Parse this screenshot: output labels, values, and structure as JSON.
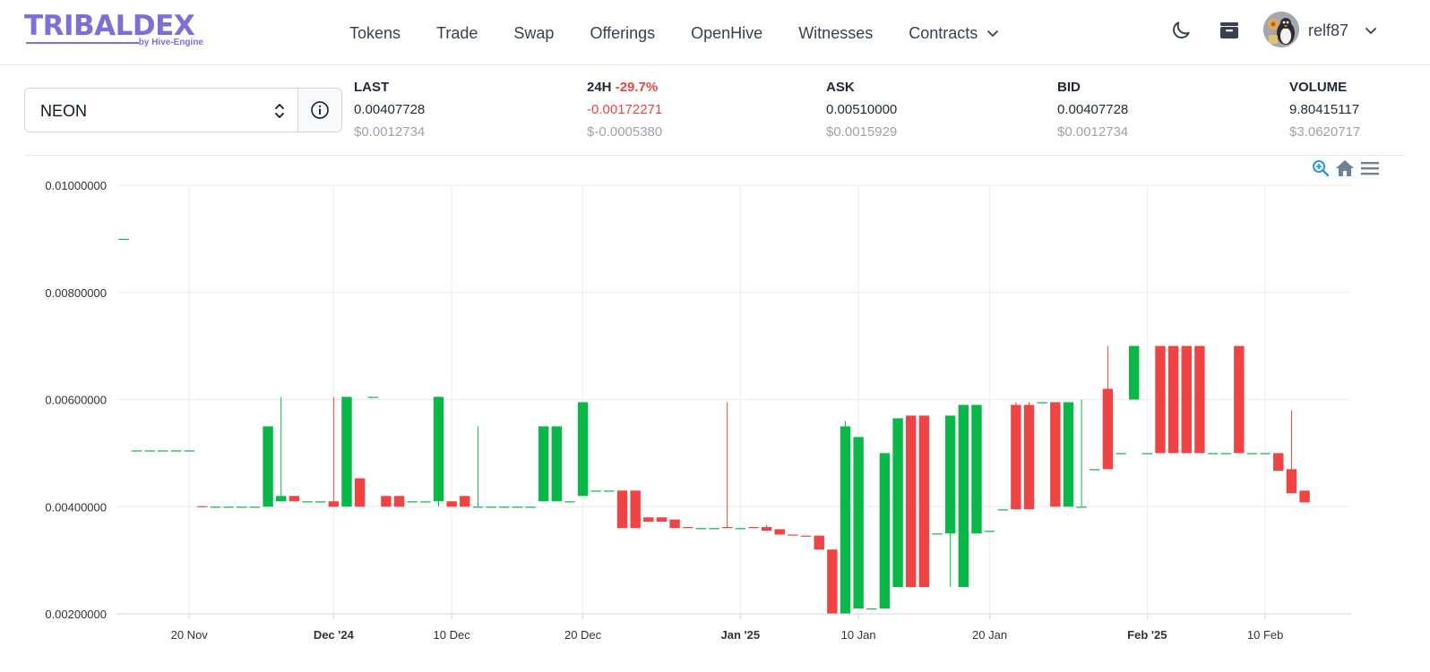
{
  "header": {
    "logo_text": "TRIBALDEX",
    "logo_sub": "by Hive-Engine",
    "nav": [
      {
        "label": "Tokens"
      },
      {
        "label": "Trade"
      },
      {
        "label": "Swap"
      },
      {
        "label": "Offerings"
      },
      {
        "label": "OpenHive"
      },
      {
        "label": "Witnesses"
      },
      {
        "label": "Contracts"
      }
    ],
    "username": "relf87",
    "icons": [
      "moon-icon",
      "wallet-icon",
      "chevron-down-icon"
    ]
  },
  "token_select": {
    "value": "NEON"
  },
  "stats": {
    "last": {
      "label": "LAST",
      "value": "0.00407728",
      "usd": "$0.0012734"
    },
    "change": {
      "label": "24H",
      "pct": "-29.7%",
      "value": "-0.00172271",
      "usd": "$-0.0005380"
    },
    "ask": {
      "label": "ASK",
      "value": "0.00510000",
      "usd": "$0.0015929"
    },
    "bid": {
      "label": "BID",
      "value": "0.00407728",
      "usd": "$0.0012734"
    },
    "volume": {
      "label": "VOLUME",
      "value": "9.80415117",
      "usd": "$3.0620717"
    }
  },
  "colors": {
    "up": "#0ab84a",
    "down": "#ef4444",
    "grid": "#eceef1"
  },
  "chart_data": {
    "type": "candlestick",
    "title": "",
    "ylim": [
      0.002,
      0.01
    ],
    "y_ticks": [
      "0.01000000",
      "0.00800000",
      "0.00600000",
      "0.00400000",
      "0.00200000"
    ],
    "x_ticks": [
      {
        "label": "20 Nov",
        "date": "2024-11-20",
        "bold": false
      },
      {
        "label": "Dec '24",
        "date": "2024-12-01",
        "bold": true
      },
      {
        "label": "10 Dec",
        "date": "2024-12-10",
        "bold": false
      },
      {
        "label": "20 Dec",
        "date": "2024-12-20",
        "bold": false
      },
      {
        "label": "Jan '25",
        "date": "2025-01-01",
        "bold": true
      },
      {
        "label": "10 Jan",
        "date": "2025-01-10",
        "bold": false
      },
      {
        "label": "20 Jan",
        "date": "2025-01-20",
        "bold": false
      },
      {
        "label": "Feb '25",
        "date": "2025-02-01",
        "bold": true
      },
      {
        "label": "10 Feb",
        "date": "2025-02-10",
        "bold": false
      }
    ],
    "x_range": [
      "2024-11-15",
      "2025-02-16"
    ],
    "series": [
      {
        "date": "2024-11-15",
        "open": 0.009,
        "high": 0.009,
        "low": 0.009,
        "close": 0.009
      },
      {
        "date": "2024-11-16",
        "open": 0.00505,
        "high": 0.00505,
        "low": 0.00505,
        "close": 0.00505
      },
      {
        "date": "2024-11-17",
        "open": 0.00505,
        "high": 0.00505,
        "low": 0.00505,
        "close": 0.00505
      },
      {
        "date": "2024-11-18",
        "open": 0.00505,
        "high": 0.00505,
        "low": 0.00505,
        "close": 0.00505
      },
      {
        "date": "2024-11-19",
        "open": 0.00505,
        "high": 0.00505,
        "low": 0.00505,
        "close": 0.00505
      },
      {
        "date": "2024-11-20",
        "open": 0.00505,
        "high": 0.00505,
        "low": 0.00505,
        "close": 0.00505
      },
      {
        "date": "2024-11-21",
        "open": 0.00401,
        "high": 0.00401,
        "low": 0.004,
        "close": 0.004
      },
      {
        "date": "2024-11-22",
        "open": 0.004,
        "high": 0.004,
        "low": 0.004,
        "close": 0.004
      },
      {
        "date": "2024-11-23",
        "open": 0.004,
        "high": 0.004,
        "low": 0.004,
        "close": 0.004
      },
      {
        "date": "2024-11-24",
        "open": 0.004,
        "high": 0.004,
        "low": 0.004,
        "close": 0.004
      },
      {
        "date": "2024-11-25",
        "open": 0.004,
        "high": 0.004,
        "low": 0.004,
        "close": 0.004
      },
      {
        "date": "2024-11-26",
        "open": 0.004,
        "high": 0.0055,
        "low": 0.004,
        "close": 0.0055
      },
      {
        "date": "2024-11-27",
        "open": 0.0041,
        "high": 0.00605,
        "low": 0.0041,
        "close": 0.0042
      },
      {
        "date": "2024-11-28",
        "open": 0.0042,
        "high": 0.0042,
        "low": 0.0041,
        "close": 0.0041
      },
      {
        "date": "2024-11-29",
        "open": 0.0041,
        "high": 0.0041,
        "low": 0.0041,
        "close": 0.0041
      },
      {
        "date": "2024-11-30",
        "open": 0.0041,
        "high": 0.0041,
        "low": 0.0041,
        "close": 0.0041
      },
      {
        "date": "2024-12-01",
        "open": 0.0041,
        "high": 0.00605,
        "low": 0.004,
        "close": 0.004
      },
      {
        "date": "2024-12-02",
        "open": 0.004,
        "high": 0.00605,
        "low": 0.004,
        "close": 0.00605
      },
      {
        "date": "2024-12-03",
        "open": 0.00453,
        "high": 0.00453,
        "low": 0.004,
        "close": 0.004
      },
      {
        "date": "2024-12-04",
        "open": 0.00605,
        "high": 0.00605,
        "low": 0.00605,
        "close": 0.00605
      },
      {
        "date": "2024-12-05",
        "open": 0.0042,
        "high": 0.0042,
        "low": 0.004,
        "close": 0.004
      },
      {
        "date": "2024-12-06",
        "open": 0.0042,
        "high": 0.0042,
        "low": 0.004,
        "close": 0.004
      },
      {
        "date": "2024-12-07",
        "open": 0.0041,
        "high": 0.0041,
        "low": 0.0041,
        "close": 0.0041
      },
      {
        "date": "2024-12-08",
        "open": 0.0041,
        "high": 0.0041,
        "low": 0.0041,
        "close": 0.0041
      },
      {
        "date": "2024-12-09",
        "open": 0.0041,
        "high": 0.00605,
        "low": 0.004,
        "close": 0.00605
      },
      {
        "date": "2024-12-10",
        "open": 0.0041,
        "high": 0.0041,
        "low": 0.004,
        "close": 0.004
      },
      {
        "date": "2024-12-11",
        "open": 0.0042,
        "high": 0.0042,
        "low": 0.004,
        "close": 0.004
      },
      {
        "date": "2024-12-12",
        "open": 0.004,
        "high": 0.0055,
        "low": 0.004,
        "close": 0.004
      },
      {
        "date": "2024-12-13",
        "open": 0.004,
        "high": 0.004,
        "low": 0.004,
        "close": 0.004
      },
      {
        "date": "2024-12-14",
        "open": 0.004,
        "high": 0.004,
        "low": 0.004,
        "close": 0.004
      },
      {
        "date": "2024-12-15",
        "open": 0.004,
        "high": 0.004,
        "low": 0.004,
        "close": 0.004
      },
      {
        "date": "2024-12-16",
        "open": 0.004,
        "high": 0.004,
        "low": 0.004,
        "close": 0.004
      },
      {
        "date": "2024-12-17",
        "open": 0.0041,
        "high": 0.0055,
        "low": 0.0041,
        "close": 0.0055
      },
      {
        "date": "2024-12-18",
        "open": 0.0041,
        "high": 0.0055,
        "low": 0.0041,
        "close": 0.0055
      },
      {
        "date": "2024-12-19",
        "open": 0.0041,
        "high": 0.0041,
        "low": 0.0041,
        "close": 0.0041
      },
      {
        "date": "2024-12-20",
        "open": 0.0042,
        "high": 0.00595,
        "low": 0.0042,
        "close": 0.00595
      },
      {
        "date": "2024-12-21",
        "open": 0.0043,
        "high": 0.0043,
        "low": 0.0043,
        "close": 0.0043
      },
      {
        "date": "2024-12-22",
        "open": 0.0043,
        "high": 0.0043,
        "low": 0.0043,
        "close": 0.0043
      },
      {
        "date": "2024-12-23",
        "open": 0.0043,
        "high": 0.0043,
        "low": 0.0036,
        "close": 0.0036
      },
      {
        "date": "2024-12-24",
        "open": 0.0043,
        "high": 0.0043,
        "low": 0.0036,
        "close": 0.0036
      },
      {
        "date": "2024-12-25",
        "open": 0.0038,
        "high": 0.0038,
        "low": 0.00372,
        "close": 0.00372
      },
      {
        "date": "2024-12-26",
        "open": 0.0038,
        "high": 0.0038,
        "low": 0.00372,
        "close": 0.00372
      },
      {
        "date": "2024-12-27",
        "open": 0.00376,
        "high": 0.00376,
        "low": 0.0036,
        "close": 0.0036
      },
      {
        "date": "2024-12-28",
        "open": 0.00362,
        "high": 0.00362,
        "low": 0.0036,
        "close": 0.0036
      },
      {
        "date": "2024-12-29",
        "open": 0.0036,
        "high": 0.0036,
        "low": 0.0036,
        "close": 0.0036
      },
      {
        "date": "2024-12-30",
        "open": 0.0036,
        "high": 0.0036,
        "low": 0.0036,
        "close": 0.0036
      },
      {
        "date": "2024-12-31",
        "open": 0.00362,
        "high": 0.00595,
        "low": 0.0036,
        "close": 0.0036
      },
      {
        "date": "2025-01-01",
        "open": 0.0036,
        "high": 0.0036,
        "low": 0.0036,
        "close": 0.0036
      },
      {
        "date": "2025-01-02",
        "open": 0.00362,
        "high": 0.00362,
        "low": 0.0036,
        "close": 0.0036
      },
      {
        "date": "2025-01-03",
        "open": 0.00362,
        "high": 0.00366,
        "low": 0.00355,
        "close": 0.00355
      },
      {
        "date": "2025-01-04",
        "open": 0.00358,
        "high": 0.00358,
        "low": 0.00348,
        "close": 0.00348
      },
      {
        "date": "2025-01-05",
        "open": 0.00348,
        "high": 0.00348,
        "low": 0.00346,
        "close": 0.00346
      },
      {
        "date": "2025-01-06",
        "open": 0.00346,
        "high": 0.00346,
        "low": 0.00345,
        "close": 0.00345
      },
      {
        "date": "2025-01-07",
        "open": 0.00346,
        "high": 0.00346,
        "low": 0.0032,
        "close": 0.0032
      },
      {
        "date": "2025-01-08",
        "open": 0.0032,
        "high": 0.0032,
        "low": 0.002,
        "close": 0.002
      },
      {
        "date": "2025-01-09",
        "open": 0.002,
        "high": 0.0056,
        "low": 0.002,
        "close": 0.0055
      },
      {
        "date": "2025-01-10",
        "open": 0.0021,
        "high": 0.0053,
        "low": 0.0021,
        "close": 0.0053
      },
      {
        "date": "2025-01-11",
        "open": 0.0021,
        "high": 0.0021,
        "low": 0.0021,
        "close": 0.0021
      },
      {
        "date": "2025-01-12",
        "open": 0.0021,
        "high": 0.005,
        "low": 0.0021,
        "close": 0.005
      },
      {
        "date": "2025-01-13",
        "open": 0.0025,
        "high": 0.00565,
        "low": 0.0025,
        "close": 0.00565
      },
      {
        "date": "2025-01-14",
        "open": 0.0057,
        "high": 0.0057,
        "low": 0.0025,
        "close": 0.0025
      },
      {
        "date": "2025-01-15",
        "open": 0.0057,
        "high": 0.0057,
        "low": 0.0025,
        "close": 0.0025
      },
      {
        "date": "2025-01-16",
        "open": 0.0035,
        "high": 0.0035,
        "low": 0.0035,
        "close": 0.0035
      },
      {
        "date": "2025-01-17",
        "open": 0.0035,
        "high": 0.0057,
        "low": 0.0025,
        "close": 0.0057
      },
      {
        "date": "2025-01-18",
        "open": 0.0025,
        "high": 0.0059,
        "low": 0.0025,
        "close": 0.0059
      },
      {
        "date": "2025-01-19",
        "open": 0.0035,
        "high": 0.0059,
        "low": 0.0035,
        "close": 0.0059
      },
      {
        "date": "2025-01-20",
        "open": 0.00355,
        "high": 0.00355,
        "low": 0.00355,
        "close": 0.00355
      },
      {
        "date": "2025-01-21",
        "open": 0.00395,
        "high": 0.00395,
        "low": 0.00395,
        "close": 0.00395
      },
      {
        "date": "2025-01-22",
        "open": 0.0059,
        "high": 0.00595,
        "low": 0.00395,
        "close": 0.00395
      },
      {
        "date": "2025-01-23",
        "open": 0.0059,
        "high": 0.00595,
        "low": 0.00395,
        "close": 0.00395
      },
      {
        "date": "2025-01-24",
        "open": 0.00595,
        "high": 0.00595,
        "low": 0.00595,
        "close": 0.00595
      },
      {
        "date": "2025-01-25",
        "open": 0.00595,
        "high": 0.00595,
        "low": 0.004,
        "close": 0.004
      },
      {
        "date": "2025-01-26",
        "open": 0.004,
        "high": 0.00595,
        "low": 0.004,
        "close": 0.00595
      },
      {
        "date": "2025-01-27",
        "open": 0.004,
        "high": 0.006,
        "low": 0.004,
        "close": 0.004
      },
      {
        "date": "2025-01-28",
        "open": 0.0047,
        "high": 0.0047,
        "low": 0.0047,
        "close": 0.0047
      },
      {
        "date": "2025-01-29",
        "open": 0.0062,
        "high": 0.007,
        "low": 0.0047,
        "close": 0.0047
      },
      {
        "date": "2025-01-30",
        "open": 0.005,
        "high": 0.005,
        "low": 0.005,
        "close": 0.005
      },
      {
        "date": "2025-01-31",
        "open": 0.006,
        "high": 0.007,
        "low": 0.006,
        "close": 0.007
      },
      {
        "date": "2025-02-01",
        "open": 0.005,
        "high": 0.005,
        "low": 0.005,
        "close": 0.005
      },
      {
        "date": "2025-02-02",
        "open": 0.007,
        "high": 0.007,
        "low": 0.005,
        "close": 0.005
      },
      {
        "date": "2025-02-03",
        "open": 0.007,
        "high": 0.007,
        "low": 0.005,
        "close": 0.005
      },
      {
        "date": "2025-02-04",
        "open": 0.007,
        "high": 0.007,
        "low": 0.005,
        "close": 0.005
      },
      {
        "date": "2025-02-05",
        "open": 0.007,
        "high": 0.007,
        "low": 0.005,
        "close": 0.005
      },
      {
        "date": "2025-02-06",
        "open": 0.005,
        "high": 0.005,
        "low": 0.005,
        "close": 0.005
      },
      {
        "date": "2025-02-07",
        "open": 0.005,
        "high": 0.005,
        "low": 0.005,
        "close": 0.005
      },
      {
        "date": "2025-02-08",
        "open": 0.007,
        "high": 0.007,
        "low": 0.005,
        "close": 0.005
      },
      {
        "date": "2025-02-09",
        "open": 0.005,
        "high": 0.005,
        "low": 0.005,
        "close": 0.005
      },
      {
        "date": "2025-02-10",
        "open": 0.005,
        "high": 0.005,
        "low": 0.005,
        "close": 0.005
      },
      {
        "date": "2025-02-11",
        "open": 0.005,
        "high": 0.005,
        "low": 0.00467,
        "close": 0.00467
      },
      {
        "date": "2025-02-12",
        "open": 0.0047,
        "high": 0.0058,
        "low": 0.00425,
        "close": 0.00425
      },
      {
        "date": "2025-02-13",
        "open": 0.0043,
        "high": 0.0043,
        "low": 0.00408,
        "close": 0.00408
      }
    ]
  }
}
